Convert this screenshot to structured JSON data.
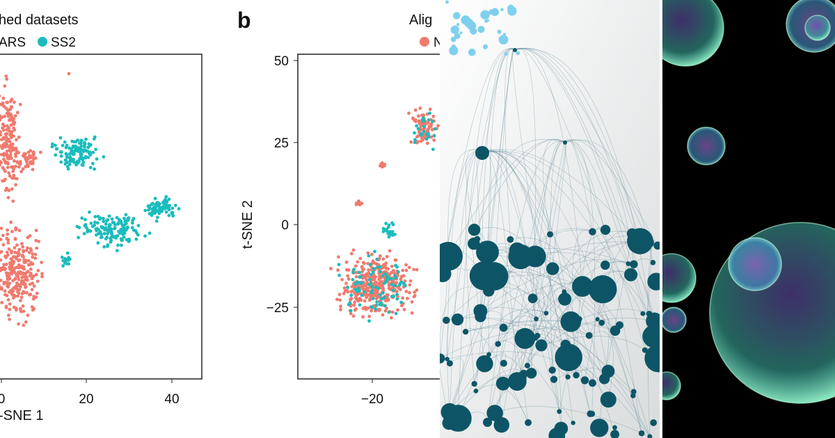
{
  "panels": [
    {
      "title": "hed datasets",
      "legend": [
        "ARS",
        "SS2"
      ],
      "x_axis": {
        "label": "-SNE 1",
        "ticks": [
          "0",
          "20",
          "40"
        ]
      }
    },
    {
      "tag": "b",
      "title": "Alig",
      "legend": [
        "N"
      ],
      "y_axis": {
        "label": "t-SNE 2",
        "ticks": [
          "50",
          "25",
          "0",
          "−25"
        ]
      },
      "x_axis": {
        "ticks": [
          "−20"
        ]
      }
    }
  ]
}
